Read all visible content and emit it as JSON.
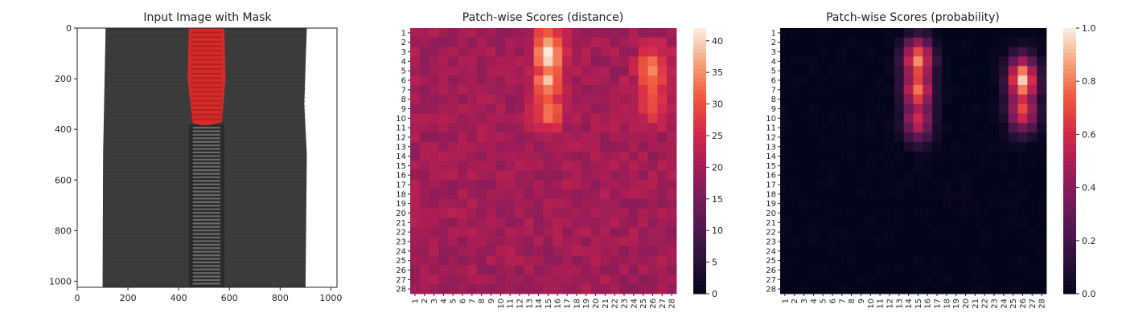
{
  "chart_data": [
    {
      "type": "image",
      "title": "Input Image with Mask",
      "xlabel": "",
      "ylabel": "",
      "xlim": [
        0,
        1024
      ],
      "ylim": [
        1024,
        0
      ],
      "xticks": [
        "0",
        "200",
        "400",
        "600",
        "800",
        "1000"
      ],
      "yticks": [
        "0",
        "200",
        "400",
        "600",
        "800",
        "1000"
      ],
      "content": "zipper",
      "colors": {
        "fabric": "#3a3a3a",
        "teeth": "#2a2a2a",
        "mask": "#d42a2a",
        "background": "#ffffff"
      }
    },
    {
      "type": "heatmap",
      "title": "Patch-wise Scores (distance)",
      "xlabel": "",
      "ylabel": "",
      "rows": 28,
      "cols": 28,
      "colormap": "rocket",
      "vmin": 0,
      "vmax": 42,
      "colorbar_ticks": [
        "0",
        "5",
        "10",
        "15",
        "20",
        "25",
        "30",
        "35",
        "40"
      ],
      "base_value": 20,
      "hotspots": [
        {
          "row": 3,
          "col": 15,
          "value": 42
        },
        {
          "row": 6,
          "col": 15,
          "value": 37
        },
        {
          "row": 9,
          "col": 15,
          "value": 34
        },
        {
          "row": 5,
          "col": 26,
          "value": 35
        },
        {
          "row": 8,
          "col": 26,
          "value": 32
        }
      ]
    },
    {
      "type": "heatmap",
      "title": "Patch-wise Scores (probability)",
      "xlabel": "",
      "ylabel": "",
      "rows": 28,
      "cols": 28,
      "colormap": "rocket",
      "vmin": 0,
      "vmax": 1,
      "colorbar_ticks": [
        "0.0",
        "0.2",
        "0.4",
        "0.6",
        "0.8",
        "1.0"
      ],
      "base_value": 0,
      "hotspots": [
        {
          "row": 4,
          "col": 15,
          "value": 0.85
        },
        {
          "row": 7,
          "col": 15,
          "value": 0.8
        },
        {
          "row": 10,
          "col": 15,
          "value": 0.6
        },
        {
          "row": 6,
          "col": 26,
          "value": 0.95
        },
        {
          "row": 9,
          "col": 26,
          "value": 0.7
        }
      ]
    }
  ]
}
